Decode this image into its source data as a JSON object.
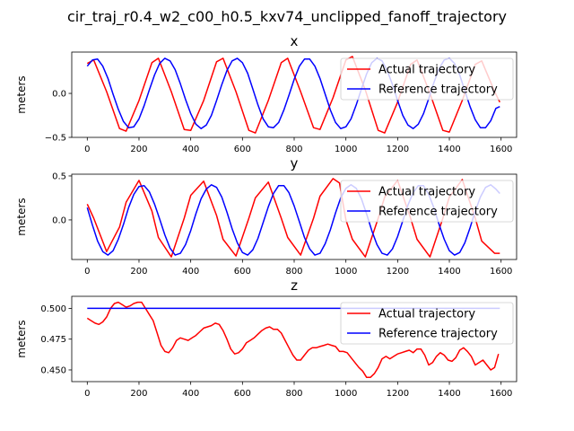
{
  "figure": {
    "suptitle": "cir_traj_r0.4_w2_c00_h0.5_kxv74_unclipped_fanoff_trajectory"
  },
  "colors": {
    "actual": "#ff0000",
    "reference": "#0000ff",
    "axes": "#000000",
    "background": "#ffffff"
  },
  "chart_data": [
    {
      "type": "line",
      "title": "x",
      "xlabel": "",
      "ylabel": "meters",
      "xlim": [
        -60,
        1660
      ],
      "ylim": [
        -0.5,
        0.47
      ],
      "xticks": [
        0,
        200,
        400,
        600,
        800,
        1000,
        1200,
        1400,
        1600
      ],
      "xtick_labels": [
        "0",
        "200",
        "400",
        "600",
        "800",
        "1000",
        "1200",
        "1400",
        "1600"
      ],
      "yticks": [
        -0.5,
        0.0
      ],
      "ytick_labels": [
        "−0.5",
        "0.0"
      ],
      "grid": false,
      "legend": "upper right",
      "series": [
        {
          "name": "Actual trajectory",
          "color": "#ff0000",
          "x": [
            0,
            25,
            75,
            125,
            150,
            200,
            250,
            275,
            325,
            375,
            400,
            450,
            500,
            525,
            575,
            625,
            650,
            700,
            750,
            775,
            825,
            875,
            900,
            950,
            1000,
            1025,
            1075,
            1125,
            1150,
            1200,
            1250,
            1275,
            1325,
            1375,
            1400,
            1450,
            1500,
            1525,
            1575,
            1595
          ],
          "y": [
            0.34,
            0.38,
            0.02,
            -0.4,
            -0.43,
            -0.08,
            0.35,
            0.4,
            0.02,
            -0.41,
            -0.42,
            -0.08,
            0.36,
            0.4,
            0.02,
            -0.42,
            -0.45,
            -0.08,
            0.35,
            0.4,
            0.02,
            -0.39,
            -0.41,
            -0.05,
            0.38,
            0.42,
            0.04,
            -0.42,
            -0.45,
            -0.1,
            0.33,
            0.38,
            0.0,
            -0.42,
            -0.44,
            -0.08,
            0.33,
            0.37,
            0.02,
            -0.1
          ]
        },
        {
          "name": "Reference trajectory",
          "color": "#0000ff",
          "x": [
            0,
            20,
            40,
            60,
            80,
            100,
            120,
            140,
            160,
            180,
            200,
            220,
            240,
            260,
            280,
            300,
            320,
            340,
            360,
            380,
            400,
            420,
            440,
            460,
            480,
            500,
            520,
            540,
            560,
            580,
            600,
            620,
            640,
            660,
            680,
            700,
            720,
            740,
            760,
            780,
            800,
            820,
            840,
            860,
            880,
            900,
            920,
            940,
            960,
            980,
            1000,
            1020,
            1040,
            1060,
            1080,
            1100,
            1120,
            1140,
            1160,
            1180,
            1200,
            1220,
            1240,
            1260,
            1280,
            1300,
            1320,
            1340,
            1360,
            1380,
            1400,
            1420,
            1440,
            1460,
            1480,
            1500,
            1520,
            1540,
            1560,
            1580,
            1595
          ],
          "y": [
            0.31,
            0.38,
            0.39,
            0.31,
            0.17,
            -0.01,
            -0.18,
            -0.32,
            -0.39,
            -0.38,
            -0.29,
            -0.14,
            0.04,
            0.21,
            0.34,
            0.4,
            0.37,
            0.27,
            0.11,
            -0.07,
            -0.23,
            -0.35,
            -0.4,
            -0.36,
            -0.25,
            -0.08,
            0.1,
            0.26,
            0.37,
            0.4,
            0.35,
            0.23,
            0.05,
            -0.13,
            -0.29,
            -0.38,
            -0.39,
            -0.33,
            -0.19,
            -0.02,
            0.16,
            0.31,
            0.39,
            0.39,
            0.31,
            0.17,
            -0.01,
            -0.19,
            -0.33,
            -0.4,
            -0.38,
            -0.29,
            -0.13,
            0.05,
            0.22,
            0.35,
            0.4,
            0.37,
            0.26,
            0.1,
            -0.08,
            -0.25,
            -0.36,
            -0.4,
            -0.35,
            -0.23,
            -0.06,
            0.12,
            0.28,
            0.38,
            0.4,
            0.34,
            0.21,
            0.03,
            -0.15,
            -0.3,
            -0.39,
            -0.39,
            -0.31,
            -0.17,
            -0.15
          ]
        }
      ]
    },
    {
      "type": "line",
      "title": "y",
      "xlabel": "",
      "ylabel": "meters",
      "xlim": [
        -60,
        1660
      ],
      "ylim": [
        -0.45,
        0.52
      ],
      "xticks": [
        0,
        200,
        400,
        600,
        800,
        1000,
        1200,
        1400,
        1600
      ],
      "xtick_labels": [
        "0",
        "200",
        "400",
        "600",
        "800",
        "1000",
        "1200",
        "1400",
        "1600"
      ],
      "yticks": [
        0.0,
        0.5
      ],
      "ytick_labels": [
        "0.0",
        "0.5"
      ],
      "grid": false,
      "legend": "upper right",
      "series": [
        {
          "name": "Actual trajectory",
          "color": "#ff0000",
          "x": [
            0,
            25,
            75,
            125,
            150,
            200,
            250,
            275,
            325,
            375,
            400,
            450,
            500,
            525,
            575,
            625,
            650,
            700,
            750,
            775,
            825,
            875,
            900,
            950,
            975,
            1000,
            1025,
            1075,
            1125,
            1150,
            1200,
            1250,
            1275,
            1325,
            1375,
            1400,
            1450,
            1500,
            1525,
            1575,
            1595
          ],
          "y": [
            0.18,
            0.02,
            -0.36,
            -0.08,
            0.2,
            0.45,
            0.1,
            -0.2,
            -0.42,
            0.02,
            0.28,
            0.44,
            0.05,
            -0.22,
            -0.41,
            0.02,
            0.25,
            0.43,
            0.02,
            -0.2,
            -0.4,
            0.02,
            0.27,
            0.47,
            0.42,
            0.0,
            -0.22,
            -0.42,
            0.02,
            0.26,
            0.45,
            0.02,
            -0.22,
            -0.42,
            0.02,
            0.26,
            0.46,
            0.02,
            -0.24,
            -0.38,
            -0.38
          ]
        },
        {
          "name": "Reference trajectory",
          "color": "#0000ff",
          "x": [
            0,
            20,
            40,
            60,
            80,
            100,
            120,
            140,
            160,
            180,
            200,
            220,
            240,
            260,
            280,
            300,
            320,
            340,
            360,
            380,
            400,
            420,
            440,
            460,
            480,
            500,
            520,
            540,
            560,
            580,
            600,
            620,
            640,
            660,
            680,
            700,
            720,
            740,
            760,
            780,
            800,
            820,
            840,
            860,
            880,
            900,
            920,
            940,
            960,
            980,
            1000,
            1020,
            1040,
            1060,
            1080,
            1100,
            1120,
            1140,
            1160,
            1180,
            1200,
            1220,
            1240,
            1260,
            1280,
            1300,
            1320,
            1340,
            1360,
            1380,
            1400,
            1420,
            1440,
            1460,
            1480,
            1500,
            1520,
            1540,
            1560,
            1580,
            1595
          ],
          "y": [
            0.14,
            -0.06,
            -0.24,
            -0.36,
            -0.4,
            -0.35,
            -0.22,
            -0.05,
            0.14,
            0.29,
            0.38,
            0.39,
            0.32,
            0.18,
            0.01,
            -0.17,
            -0.32,
            -0.4,
            -0.38,
            -0.28,
            -0.12,
            0.07,
            0.24,
            0.35,
            0.4,
            0.37,
            0.26,
            0.09,
            -0.1,
            -0.26,
            -0.37,
            -0.4,
            -0.34,
            -0.21,
            -0.03,
            0.15,
            0.3,
            0.39,
            0.39,
            0.31,
            0.16,
            -0.02,
            -0.2,
            -0.33,
            -0.4,
            -0.38,
            -0.27,
            -0.11,
            0.08,
            0.25,
            0.36,
            0.4,
            0.36,
            0.24,
            0.07,
            -0.12,
            -0.28,
            -0.38,
            -0.4,
            -0.33,
            -0.19,
            -0.01,
            0.17,
            0.31,
            0.39,
            0.39,
            0.29,
            0.14,
            -0.05,
            -0.22,
            -0.35,
            -0.4,
            -0.37,
            -0.26,
            -0.09,
            0.1,
            0.26,
            0.37,
            0.4,
            0.35,
            0.3
          ]
        }
      ]
    },
    {
      "type": "line",
      "title": "z",
      "xlabel": "",
      "ylabel": "meters",
      "xlim": [
        -60,
        1660
      ],
      "ylim": [
        0.4405,
        0.5098
      ],
      "xticks": [
        0,
        200,
        400,
        600,
        800,
        1000,
        1200,
        1400,
        1600
      ],
      "xtick_labels": [
        "0",
        "200",
        "400",
        "600",
        "800",
        "1000",
        "1200",
        "1400",
        "1600"
      ],
      "yticks": [
        0.45,
        0.475,
        0.5
      ],
      "ytick_labels": [
        "0.450",
        "0.475",
        "0.500"
      ],
      "grid": false,
      "legend": "upper right",
      "series": [
        {
          "name": "Actual trajectory",
          "color": "#ff0000",
          "x": [
            0,
            15,
            30,
            45,
            60,
            75,
            90,
            105,
            120,
            135,
            150,
            165,
            180,
            195,
            210,
            225,
            240,
            255,
            270,
            285,
            300,
            315,
            330,
            345,
            360,
            375,
            390,
            405,
            420,
            435,
            450,
            465,
            480,
            495,
            510,
            525,
            540,
            555,
            570,
            585,
            600,
            615,
            630,
            645,
            660,
            675,
            690,
            705,
            720,
            735,
            750,
            765,
            780,
            795,
            810,
            825,
            840,
            855,
            870,
            885,
            900,
            915,
            930,
            945,
            960,
            975,
            990,
            1005,
            1020,
            1035,
            1050,
            1065,
            1080,
            1095,
            1110,
            1125,
            1140,
            1155,
            1170,
            1185,
            1200,
            1215,
            1230,
            1245,
            1260,
            1275,
            1290,
            1305,
            1320,
            1335,
            1350,
            1365,
            1380,
            1395,
            1410,
            1425,
            1440,
            1455,
            1470,
            1485,
            1500,
            1515,
            1530,
            1545,
            1560,
            1575,
            1590
          ],
          "y": [
            0.492,
            0.49,
            0.488,
            0.487,
            0.489,
            0.493,
            0.5,
            0.504,
            0.505,
            0.503,
            0.501,
            0.502,
            0.504,
            0.505,
            0.505,
            0.5,
            0.495,
            0.49,
            0.48,
            0.47,
            0.465,
            0.464,
            0.468,
            0.474,
            0.476,
            0.475,
            0.474,
            0.476,
            0.478,
            0.481,
            0.484,
            0.485,
            0.486,
            0.488,
            0.487,
            0.482,
            0.475,
            0.467,
            0.463,
            0.464,
            0.467,
            0.472,
            0.474,
            0.476,
            0.479,
            0.482,
            0.484,
            0.485,
            0.483,
            0.483,
            0.48,
            0.474,
            0.468,
            0.462,
            0.458,
            0.458,
            0.462,
            0.466,
            0.468,
            0.468,
            0.469,
            0.47,
            0.471,
            0.47,
            0.469,
            0.465,
            0.465,
            0.464,
            0.46,
            0.456,
            0.452,
            0.449,
            0.444,
            0.444,
            0.447,
            0.452,
            0.459,
            0.461,
            0.459,
            0.461,
            0.463,
            0.464,
            0.465,
            0.466,
            0.464,
            0.467,
            0.467,
            0.462,
            0.454,
            0.456,
            0.461,
            0.464,
            0.462,
            0.458,
            0.457,
            0.46,
            0.466,
            0.468,
            0.465,
            0.461,
            0.454,
            0.456,
            0.458,
            0.454,
            0.45,
            0.452,
            0.463
          ]
        },
        {
          "name": "Reference trajectory",
          "color": "#0000ff",
          "x": [
            0,
            1595
          ],
          "y": [
            0.5,
            0.5
          ]
        }
      ]
    }
  ]
}
